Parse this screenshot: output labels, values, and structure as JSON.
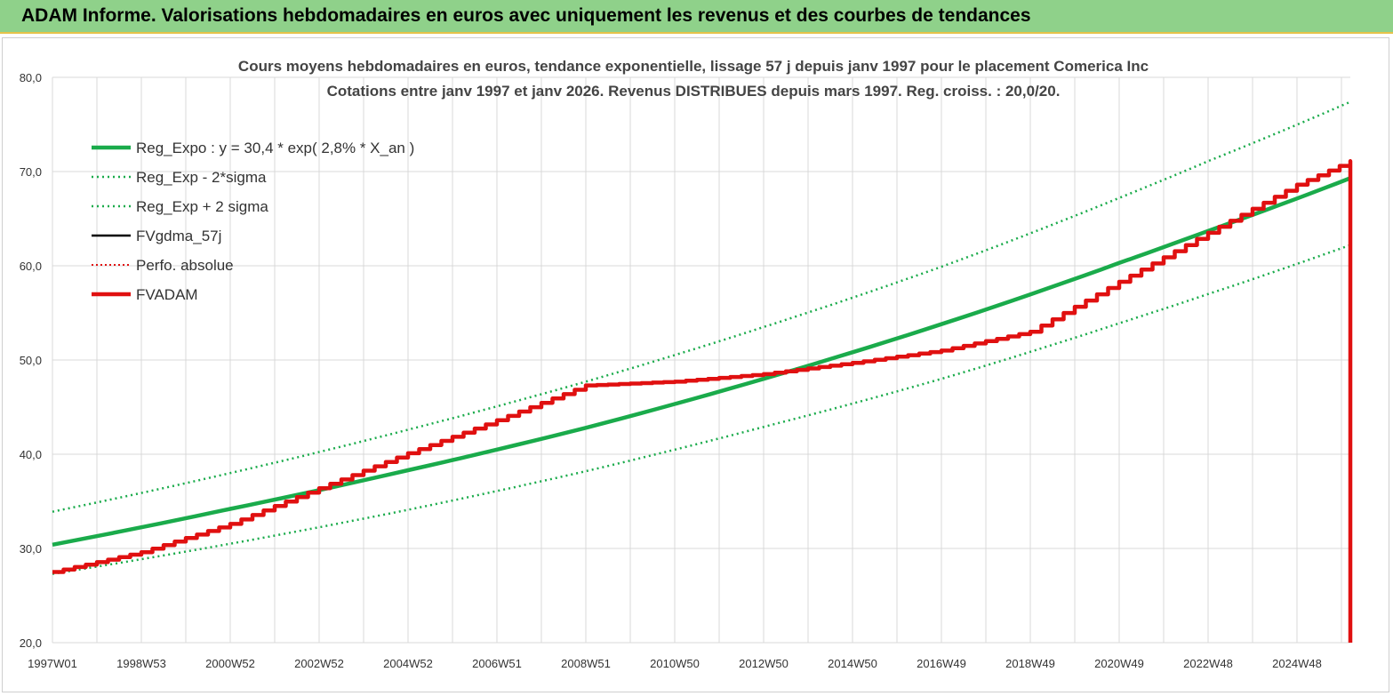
{
  "header": {
    "title": "ADAM Informe. Valorisations hebdomadaires en euros avec uniquement les revenus et des courbes de tendances"
  },
  "colors": {
    "banner": "#8fd18a",
    "trend": "#1aab4b",
    "fvadam": "#e01010",
    "fvgdma": "#000000",
    "perfo": "#e01010",
    "grid": "#d9d9d9"
  },
  "chart_data": {
    "type": "line",
    "title": "Cours moyens hebdomadaires en euros, tendance exponentielle, lissage 57 j depuis janv 1997 pour le placement Comerica Inc",
    "subtitle": "Cotations entre janv 1997 et janv 2026. Revenus DISTRIBUES depuis mars 1997. Reg. croiss. : 20,0/20.",
    "xlabel": "",
    "ylabel": "",
    "ylim": [
      20,
      80
    ],
    "xlim": [
      1997.0,
      2026.2
    ],
    "grid": true,
    "legend_position": "top-left",
    "y_ticks": [
      "20,0",
      "30,0",
      "40,0",
      "50,0",
      "60,0",
      "70,0",
      "80,0"
    ],
    "x_ticks": [
      {
        "label": "1997W01",
        "x": 1997.0
      },
      {
        "label": "1998W53",
        "x": 1999.0
      },
      {
        "label": "2000W52",
        "x": 2001.0
      },
      {
        "label": "2002W52",
        "x": 2003.0
      },
      {
        "label": "2004W52",
        "x": 2005.0
      },
      {
        "label": "2006W51",
        "x": 2007.0
      },
      {
        "label": "2008W51",
        "x": 2009.0
      },
      {
        "label": "2010W50",
        "x": 2011.0
      },
      {
        "label": "2012W50",
        "x": 2013.0
      },
      {
        "label": "2014W50",
        "x": 2015.0
      },
      {
        "label": "2016W49",
        "x": 2017.0
      },
      {
        "label": "2018W49",
        "x": 2019.0
      },
      {
        "label": "2020W49",
        "x": 2021.0
      },
      {
        "label": "2022W48",
        "x": 2023.0
      },
      {
        "label": "2024W48",
        "x": 2025.0
      }
    ],
    "series": [
      {
        "name": "Reg_Expo : y = 30,4 * exp( 2,8% *  X_an )",
        "style": "solid-thick",
        "color": "#1aab4b",
        "x": [
          1997.0,
          2001.0,
          2005.0,
          2009.0,
          2013.0,
          2017.0,
          2021.0,
          2023.0,
          2026.2
        ],
        "y": [
          30.4,
          34.2,
          38.3,
          42.8,
          48.0,
          53.8,
          60.3,
          63.7,
          69.3
        ]
      },
      {
        "name": "Reg_Exp - 2*sigma",
        "style": "dotted",
        "color": "#1aab4b",
        "x": [
          1997.0,
          2001.0,
          2005.0,
          2009.0,
          2013.0,
          2017.0,
          2021.0,
          2023.0,
          2026.2
        ],
        "y": [
          27.3,
          30.5,
          34.1,
          38.2,
          42.9,
          48.0,
          53.9,
          57.0,
          62.2
        ]
      },
      {
        "name": "Reg_Exp + 2 sigma",
        "style": "dotted",
        "color": "#1aab4b",
        "x": [
          1997.0,
          2001.0,
          2005.0,
          2009.0,
          2013.0,
          2017.0,
          2021.0,
          2023.0,
          2026.2
        ],
        "y": [
          33.9,
          38.0,
          42.6,
          47.7,
          53.5,
          59.9,
          67.2,
          71.1,
          77.4
        ]
      },
      {
        "name": "FVgdma_57j",
        "style": "solid",
        "color": "#000000",
        "x": [],
        "y": []
      },
      {
        "name": "Perfo. absolue",
        "style": "dotted-thin",
        "color": "#e01010",
        "x": [],
        "y": []
      },
      {
        "name": "FVADAM",
        "style": "solid-thick",
        "color": "#e01010",
        "x": [
          1997.0,
          1999.0,
          2001.0,
          2003.0,
          2005.0,
          2007.0,
          2009.0,
          2011.0,
          2013.0,
          2015.0,
          2017.0,
          2019.0,
          2021.0,
          2023.0,
          2025.0,
          2026.2,
          2026.2
        ],
        "y": [
          27.5,
          29.6,
          32.6,
          36.4,
          40.1,
          43.6,
          47.3,
          47.7,
          48.5,
          49.7,
          51.0,
          53.0,
          58.3,
          63.5,
          68.6,
          71.1,
          20.0
        ]
      }
    ]
  }
}
